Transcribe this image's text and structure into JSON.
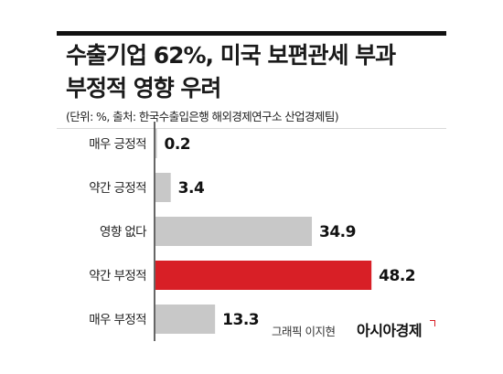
{
  "title": [
    "수출기업 62%, 미국 보편관세 부과",
    "부정적 영향 우려"
  ],
  "source": "(단위: %, 출처: 한국수출입은행 해외경제연구소 산업경제팀)",
  "credit": "그래픽 이지현",
  "brand": "아시아경제",
  "colors": {
    "bar_default": "#c8c8c8",
    "bar_highlight": "#d81f26",
    "axis": "#333333"
  },
  "chart_data": {
    "type": "bar",
    "orientation": "horizontal",
    "categories": [
      "매우 긍정적",
      "약간 긍정적",
      "영향 없다",
      "약간 부정적",
      "매우 부정적"
    ],
    "values": [
      0.2,
      3.4,
      34.9,
      48.2,
      13.3
    ],
    "value_labels": [
      "0.2",
      "3.4",
      "34.9",
      "48.2",
      "13.3"
    ],
    "highlight_index": 3,
    "xlim": [
      0,
      50
    ],
    "grid": false,
    "legend": "none",
    "title": "",
    "xlabel": "",
    "ylabel": ""
  }
}
